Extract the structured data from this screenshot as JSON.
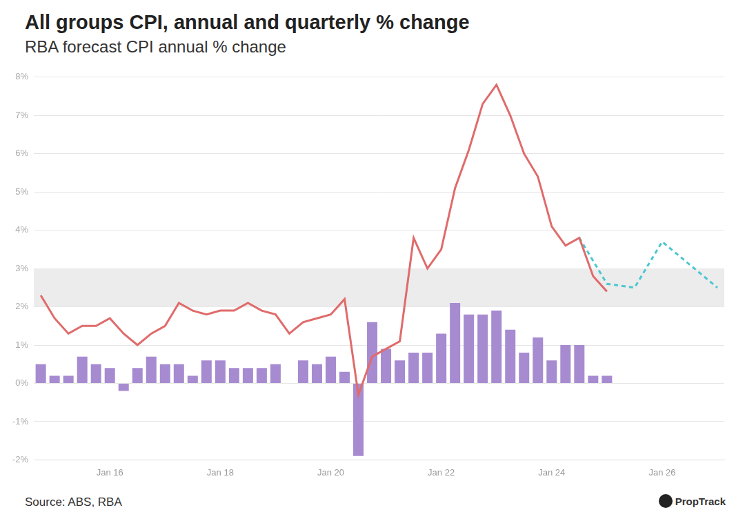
{
  "chart_data": {
    "type": "bar",
    "title": "All groups CPI, annual and quarterly % change",
    "subtitle": "RBA forecast CPI annual % change",
    "source": "Source: ABS, RBA",
    "logo_text": "PropTrack",
    "categories": [
      null,
      null,
      null,
      null,
      null,
      "Jan 16",
      null,
      null,
      null,
      null,
      null,
      null,
      null,
      "Jan 18",
      null,
      null,
      null,
      null,
      null,
      null,
      null,
      "Jan 20",
      null,
      null,
      null,
      null,
      null,
      null,
      null,
      "Jan 22",
      null,
      null,
      null,
      null,
      null,
      null,
      null,
      "Jan 24",
      null,
      null,
      null,
      null,
      null,
      null,
      null,
      "Jan 26",
      null,
      null,
      null,
      null
    ],
    "series": [
      {
        "type": "bar",
        "color": "#a78bd1",
        "values": [
          0.5,
          0.2,
          0.2,
          0.7,
          0.5,
          0.4,
          -0.2,
          0.4,
          0.7,
          0.5,
          0.5,
          0.2,
          0.6,
          0.6,
          0.4,
          0.4,
          0.4,
          0.5,
          0.0,
          0.6,
          0.5,
          0.7,
          0.3,
          -1.9,
          1.6,
          0.9,
          0.6,
          0.8,
          0.8,
          1.3,
          2.1,
          1.8,
          1.8,
          1.9,
          1.4,
          0.8,
          1.2,
          0.6,
          1.0,
          1.0,
          0.2,
          0.2,
          null,
          null,
          null,
          null,
          null,
          null,
          null,
          null
        ]
      },
      {
        "type": "line",
        "color": "#e06b6b",
        "line_style": "solid",
        "values": [
          2.3,
          1.7,
          1.3,
          1.5,
          1.5,
          1.7,
          1.3,
          1.0,
          1.3,
          1.5,
          2.1,
          1.9,
          1.8,
          1.9,
          1.9,
          2.1,
          1.9,
          1.8,
          1.3,
          1.6,
          1.7,
          1.8,
          2.2,
          -0.3,
          0.7,
          0.9,
          1.1,
          3.8,
          3.0,
          3.5,
          5.1,
          6.1,
          7.3,
          7.8,
          7.0,
          6.0,
          5.4,
          4.1,
          3.6,
          3.8,
          2.8,
          2.4,
          null,
          null,
          null,
          null,
          null,
          null,
          null,
          null
        ]
      },
      {
        "type": "line",
        "color": "#4cc6d0",
        "line_style": "dashed",
        "values": [
          null,
          null,
          null,
          null,
          null,
          null,
          null,
          null,
          null,
          null,
          null,
          null,
          null,
          null,
          null,
          null,
          null,
          null,
          null,
          null,
          null,
          null,
          null,
          null,
          null,
          null,
          null,
          null,
          null,
          null,
          null,
          null,
          null,
          null,
          null,
          null,
          null,
          null,
          null,
          3.8,
          null,
          2.6,
          null,
          2.5,
          null,
          3.7,
          null,
          3.1,
          null,
          2.5
        ]
      }
    ],
    "target_band": [
      2,
      3
    ],
    "ylim": [
      -2,
      8
    ],
    "yticks": [
      {
        "value": -2,
        "label": "-2%"
      },
      {
        "value": -1,
        "label": "-1%"
      },
      {
        "value": 0,
        "label": "0%"
      },
      {
        "value": 1,
        "label": "1%"
      },
      {
        "value": 2,
        "label": "2%"
      },
      {
        "value": 3,
        "label": "3%"
      },
      {
        "value": 4,
        "label": "4%"
      },
      {
        "value": 5,
        "label": "5%"
      },
      {
        "value": 6,
        "label": "6%"
      },
      {
        "value": 7,
        "label": "7%"
      },
      {
        "value": 8,
        "label": "8%"
      }
    ],
    "grid": true
  }
}
